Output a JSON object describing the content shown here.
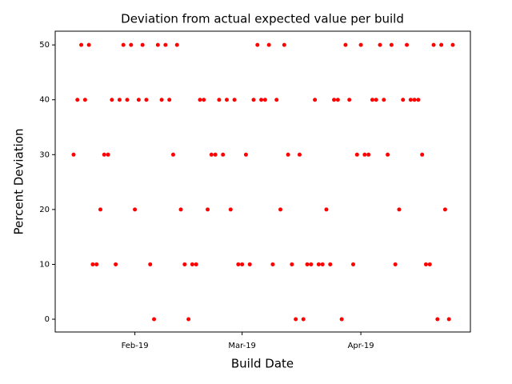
{
  "chart_data": {
    "type": "scatter",
    "title": "Deviation from actual expected value per build",
    "x_label": "Build Date",
    "y_label": "Percent Deviation",
    "color": "red",
    "x": [
      1,
      2,
      3,
      4,
      5,
      6,
      7,
      8,
      9,
      10,
      11,
      12,
      13,
      14,
      15,
      16,
      17,
      18,
      19,
      20,
      21,
      22,
      23,
      24,
      25,
      26,
      27,
      28,
      29,
      30,
      31,
      32,
      33,
      34,
      35,
      36,
      37,
      38,
      39,
      40,
      41,
      42,
      43,
      44,
      45,
      46,
      47,
      48,
      49,
      50,
      51,
      52,
      53,
      54,
      55,
      56,
      57,
      58,
      59,
      60,
      61,
      62,
      63,
      64,
      65,
      66,
      67,
      68,
      69,
      70,
      71,
      72,
      73,
      74,
      75,
      76,
      77,
      78,
      79,
      80,
      81,
      82,
      83,
      84,
      85,
      86,
      87,
      88,
      89,
      90,
      91,
      92,
      93,
      94,
      95,
      96,
      97,
      98,
      99,
      100
    ],
    "values": [
      30,
      40,
      50,
      40,
      50,
      10,
      10,
      20,
      30,
      30,
      40,
      10,
      40,
      50,
      40,
      50,
      20,
      40,
      50,
      40,
      10,
      0,
      50,
      40,
      50,
      40,
      30,
      50,
      20,
      10,
      0,
      10,
      10,
      40,
      40,
      20,
      30,
      30,
      40,
      30,
      40,
      20,
      40,
      10,
      10,
      30,
      10,
      40,
      50,
      40,
      40,
      50,
      10,
      40,
      20,
      50,
      30,
      10,
      0,
      30,
      0,
      10,
      10,
      40,
      10,
      10,
      20,
      10,
      40,
      40,
      0,
      50,
      40,
      10,
      30,
      50,
      30,
      30,
      40,
      40,
      50,
      40,
      30,
      50,
      10,
      20,
      40,
      50,
      40,
      40,
      40,
      30,
      10,
      10,
      50,
      0,
      50,
      20,
      0,
      50
    ],
    "xlim": [
      -3.8,
      104.6
    ],
    "xticks": [
      {
        "value": 17,
        "label": "Feb-19"
      },
      {
        "value": 45,
        "label": "Mar-19"
      },
      {
        "value": 76,
        "label": "Apr-19"
      }
    ],
    "ylim": [
      -2.33,
      52.5
    ],
    "yticks": [
      0,
      10,
      20,
      30,
      40,
      50
    ]
  }
}
